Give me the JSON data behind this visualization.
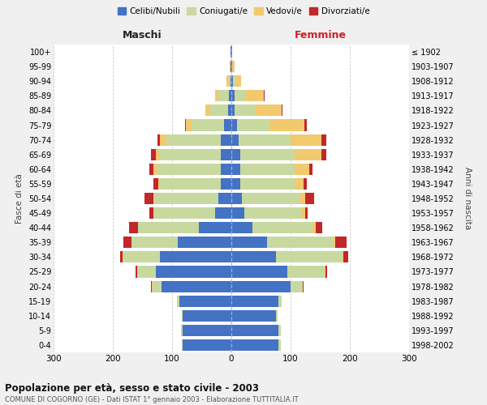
{
  "age_groups": [
    "0-4",
    "5-9",
    "10-14",
    "15-19",
    "20-24",
    "25-29",
    "30-34",
    "35-39",
    "40-44",
    "45-49",
    "50-54",
    "55-59",
    "60-64",
    "65-69",
    "70-74",
    "75-79",
    "80-84",
    "85-89",
    "90-94",
    "95-99",
    "100+"
  ],
  "birth_years": [
    "1998-2002",
    "1993-1997",
    "1988-1992",
    "1983-1987",
    "1978-1982",
    "1973-1977",
    "1968-1972",
    "1963-1967",
    "1958-1962",
    "1953-1957",
    "1948-1952",
    "1943-1947",
    "1938-1942",
    "1933-1937",
    "1928-1932",
    "1923-1927",
    "1918-1922",
    "1913-1917",
    "1908-1912",
    "1903-1907",
    "≤ 1902"
  ],
  "maschi": {
    "celibi": [
      82,
      82,
      82,
      88,
      118,
      128,
      120,
      90,
      55,
      28,
      22,
      18,
      18,
      18,
      18,
      12,
      6,
      4,
      1,
      1,
      1
    ],
    "coniugati": [
      2,
      3,
      2,
      4,
      15,
      30,
      62,
      78,
      102,
      102,
      108,
      102,
      108,
      102,
      92,
      55,
      30,
      18,
      3,
      1,
      0
    ],
    "vedovi": [
      0,
      0,
      0,
      0,
      1,
      1,
      1,
      1,
      1,
      1,
      2,
      3,
      5,
      8,
      10,
      10,
      8,
      5,
      4,
      1,
      0
    ],
    "divorziati": [
      0,
      0,
      0,
      0,
      1,
      2,
      5,
      13,
      15,
      8,
      15,
      8,
      8,
      8,
      5,
      1,
      0,
      1,
      0,
      0,
      0
    ]
  },
  "femmine": {
    "nubili": [
      80,
      80,
      75,
      80,
      100,
      95,
      75,
      60,
      35,
      22,
      18,
      15,
      15,
      15,
      12,
      10,
      5,
      5,
      3,
      1,
      1
    ],
    "coniugate": [
      3,
      3,
      3,
      5,
      20,
      62,
      112,
      112,
      102,
      97,
      97,
      92,
      92,
      92,
      88,
      55,
      35,
      20,
      4,
      1,
      0
    ],
    "vedove": [
      0,
      0,
      0,
      0,
      1,
      2,
      2,
      3,
      5,
      5,
      10,
      15,
      25,
      45,
      52,
      58,
      45,
      30,
      10,
      3,
      1
    ],
    "divorziate": [
      0,
      0,
      0,
      0,
      1,
      2,
      8,
      20,
      12,
      5,
      15,
      5,
      5,
      8,
      8,
      5,
      1,
      1,
      0,
      0,
      0
    ]
  },
  "colors": {
    "celibi_nubili": "#4472c4",
    "coniugati": "#c8d9a0",
    "vedovi": "#f2c96e",
    "divorziati": "#c0282a"
  },
  "xlim": 300,
  "title": "Popolazione per età, sesso e stato civile - 2003",
  "subtitle": "COMUNE DI COGORNO (GE) - Dati ISTAT 1° gennaio 2003 - Elaborazione TUTTITALIA.IT",
  "ylabel_left": "Fasce di età",
  "ylabel_right": "Anni di nascita",
  "xlabel_maschi": "Maschi",
  "xlabel_femmine": "Femmine",
  "bg_color": "#f0f0f0",
  "plot_bg": "#ffffff",
  "legend_labels": [
    "Celibi/Nubili",
    "Coniugati/e",
    "Vedovi/e",
    "Divorziati/e"
  ]
}
